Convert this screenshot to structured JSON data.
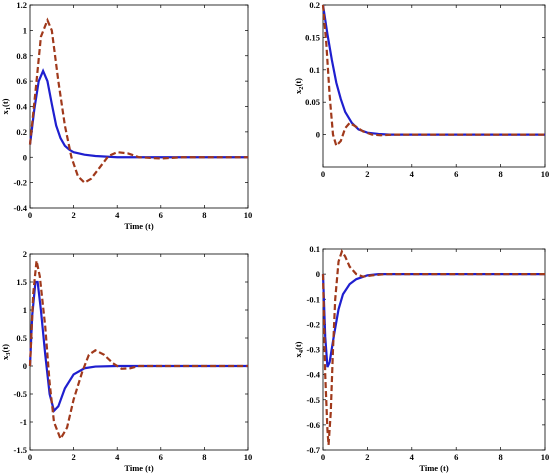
{
  "chart_data": [
    {
      "type": "line",
      "xlabel": "Time (t)",
      "ylabel": "x1(t)",
      "ylabel_main": "x",
      "ylabel_sub": "1",
      "ylabel_tail": "(t)",
      "xlim": [
        0,
        10
      ],
      "ylim": [
        -0.4,
        1.2
      ],
      "xticks": [
        0,
        2,
        4,
        6,
        8,
        10
      ],
      "yticks": [
        -0.4,
        -0.2,
        0,
        0.2,
        0.4,
        0.6,
        0.8,
        1,
        1.2
      ],
      "series": [
        {
          "color": "#1f1fcf",
          "style": "solid",
          "points": [
            [
              0,
              0.1
            ],
            [
              0.2,
              0.38
            ],
            [
              0.4,
              0.6
            ],
            [
              0.6,
              0.68
            ],
            [
              0.8,
              0.6
            ],
            [
              1.0,
              0.42
            ],
            [
              1.2,
              0.25
            ],
            [
              1.4,
              0.15
            ],
            [
              1.6,
              0.09
            ],
            [
              1.8,
              0.06
            ],
            [
              2.0,
              0.04
            ],
            [
              2.5,
              0.02
            ],
            [
              3.0,
              0.01
            ],
            [
              4,
              0
            ],
            [
              6,
              0
            ],
            [
              10,
              0
            ]
          ]
        },
        {
          "color": "#a0391b",
          "style": "dashed",
          "points": [
            [
              0,
              0.1
            ],
            [
              0.3,
              0.6
            ],
            [
              0.5,
              0.95
            ],
            [
              0.8,
              1.08
            ],
            [
              1.0,
              1.0
            ],
            [
              1.3,
              0.6
            ],
            [
              1.6,
              0.25
            ],
            [
              1.9,
              0.0
            ],
            [
              2.2,
              -0.15
            ],
            [
              2.5,
              -0.2
            ],
            [
              2.8,
              -0.17
            ],
            [
              3.2,
              -0.08
            ],
            [
              3.6,
              0.01
            ],
            [
              4.0,
              0.04
            ],
            [
              4.5,
              0.03
            ],
            [
              5.0,
              0.0
            ],
            [
              6.0,
              -0.01
            ],
            [
              7,
              0
            ],
            [
              10,
              0
            ]
          ]
        }
      ]
    },
    {
      "type": "line",
      "xlabel": "",
      "ylabel": "x2(t)",
      "ylabel_main": "x",
      "ylabel_sub": "2",
      "ylabel_tail": "(t)",
      "xlim": [
        0,
        10
      ],
      "ylim": [
        -0.05,
        0.2
      ],
      "xticks": [
        0,
        2,
        4,
        6,
        8,
        10
      ],
      "yticks": [
        0,
        0.05,
        0.1,
        0.15,
        0.2
      ],
      "series": [
        {
          "color": "#1f1fcf",
          "style": "solid",
          "points": [
            [
              0,
              0.2
            ],
            [
              0.2,
              0.155
            ],
            [
              0.4,
              0.115
            ],
            [
              0.6,
              0.08
            ],
            [
              0.8,
              0.055
            ],
            [
              1.0,
              0.035
            ],
            [
              1.3,
              0.018
            ],
            [
              1.6,
              0.008
            ],
            [
              2.0,
              0.003
            ],
            [
              2.5,
              0.001
            ],
            [
              3,
              0
            ],
            [
              10,
              0
            ]
          ]
        },
        {
          "color": "#a0391b",
          "style": "dashed",
          "points": [
            [
              0,
              0.2
            ],
            [
              0.15,
              0.14
            ],
            [
              0.3,
              0.06
            ],
            [
              0.45,
              0.0
            ],
            [
              0.6,
              -0.017
            ],
            [
              0.8,
              -0.01
            ],
            [
              1.0,
              0.01
            ],
            [
              1.2,
              0.018
            ],
            [
              1.5,
              0.012
            ],
            [
              1.8,
              0.005
            ],
            [
              2.2,
              0.0
            ],
            [
              2.6,
              -0.001
            ],
            [
              3.2,
              0
            ],
            [
              10,
              0
            ]
          ]
        }
      ]
    },
    {
      "type": "line",
      "xlabel": "Time (t)",
      "ylabel": "x3(t)",
      "ylabel_main": "x",
      "ylabel_sub": "3",
      "ylabel_tail": "(t)",
      "xlim": [
        0,
        10
      ],
      "ylim": [
        -1.5,
        2
      ],
      "xticks": [
        0,
        2,
        4,
        6,
        8,
        10
      ],
      "yticks": [
        -1.5,
        -1,
        -0.5,
        0,
        0.5,
        1,
        1.5,
        2
      ],
      "series": [
        {
          "color": "#1f1fcf",
          "style": "solid",
          "points": [
            [
              0,
              0
            ],
            [
              0.1,
              0.9
            ],
            [
              0.25,
              1.5
            ],
            [
              0.35,
              1.5
            ],
            [
              0.5,
              1.0
            ],
            [
              0.7,
              0.2
            ],
            [
              0.9,
              -0.5
            ],
            [
              1.1,
              -0.8
            ],
            [
              1.3,
              -0.72
            ],
            [
              1.6,
              -0.4
            ],
            [
              2.0,
              -0.15
            ],
            [
              2.5,
              -0.04
            ],
            [
              3.0,
              -0.01
            ],
            [
              4,
              0
            ],
            [
              10,
              0
            ]
          ]
        },
        {
          "color": "#a0391b",
          "style": "dashed",
          "points": [
            [
              0,
              0
            ],
            [
              0.15,
              1.3
            ],
            [
              0.3,
              1.88
            ],
            [
              0.45,
              1.6
            ],
            [
              0.7,
              0.7
            ],
            [
              0.9,
              -0.3
            ],
            [
              1.1,
              -1.0
            ],
            [
              1.4,
              -1.3
            ],
            [
              1.7,
              -1.1
            ],
            [
              2.0,
              -0.6
            ],
            [
              2.4,
              -0.1
            ],
            [
              2.7,
              0.2
            ],
            [
              3.0,
              0.28
            ],
            [
              3.4,
              0.2
            ],
            [
              3.8,
              0.05
            ],
            [
              4.2,
              -0.05
            ],
            [
              4.6,
              -0.04
            ],
            [
              5.0,
              0.0
            ],
            [
              6,
              0
            ],
            [
              10,
              0
            ]
          ]
        }
      ]
    },
    {
      "type": "line",
      "xlabel": "Time (t)",
      "ylabel": "x4(t)",
      "ylabel_main": "x",
      "ylabel_sub": "4",
      "ylabel_tail": "(t)",
      "xlim": [
        0,
        10
      ],
      "ylim": [
        -0.7,
        0.1
      ],
      "xticks": [
        0,
        2,
        4,
        6,
        8,
        10
      ],
      "yticks": [
        -0.7,
        -0.6,
        -0.5,
        -0.4,
        -0.3,
        -0.2,
        -0.1,
        0,
        0.1
      ],
      "series": [
        {
          "color": "#1f1fcf",
          "style": "solid",
          "points": [
            [
              0,
              0
            ],
            [
              0.1,
              -0.25
            ],
            [
              0.2,
              -0.37
            ],
            [
              0.3,
              -0.35
            ],
            [
              0.5,
              -0.24
            ],
            [
              0.7,
              -0.14
            ],
            [
              0.9,
              -0.08
            ],
            [
              1.2,
              -0.04
            ],
            [
              1.5,
              -0.02
            ],
            [
              2.0,
              -0.005
            ],
            [
              2.5,
              0
            ],
            [
              10,
              0
            ]
          ]
        },
        {
          "color": "#a0391b",
          "style": "dashed",
          "points": [
            [
              0,
              0
            ],
            [
              0.1,
              -0.4
            ],
            [
              0.2,
              -0.62
            ],
            [
              0.25,
              -0.68
            ],
            [
              0.35,
              -0.55
            ],
            [
              0.45,
              -0.3
            ],
            [
              0.55,
              -0.1
            ],
            [
              0.7,
              0.05
            ],
            [
              0.85,
              0.09
            ],
            [
              1.0,
              0.07
            ],
            [
              1.2,
              0.03
            ],
            [
              1.5,
              0.0
            ],
            [
              1.8,
              -0.01
            ],
            [
              2.2,
              -0.005
            ],
            [
              2.8,
              0
            ],
            [
              10,
              0
            ]
          ]
        }
      ]
    }
  ]
}
